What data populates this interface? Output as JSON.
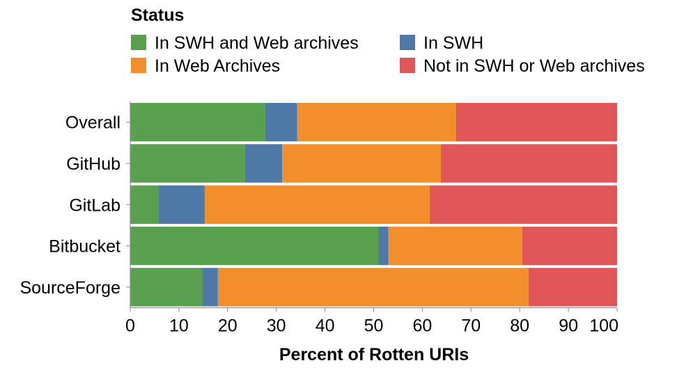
{
  "chart_data": {
    "type": "bar",
    "orientation": "horizontal",
    "stacked": true,
    "categories": [
      "Overall",
      "GitHub",
      "GitLab",
      "Bitbucket",
      "SourceForge"
    ],
    "series": [
      {
        "name": "In SWH and Web archives",
        "color": "#59a14f",
        "values": [
          27.7,
          23.6,
          5.8,
          51.0,
          14.8
        ]
      },
      {
        "name": "In SWH",
        "color": "#4e79a7",
        "values": [
          6.6,
          7.6,
          9.5,
          2.0,
          3.2
        ]
      },
      {
        "name": "In Web Archives",
        "color": "#f28e2b",
        "values": [
          32.6,
          32.6,
          46.2,
          27.5,
          63.8
        ]
      },
      {
        "name": "Not in SWH or Web archives",
        "color": "#e15759",
        "values": [
          33.1,
          36.2,
          38.5,
          19.5,
          18.2
        ]
      }
    ],
    "xlabel": "Percent of Rotten URIs",
    "ylabel": "",
    "xlim": [
      0,
      100
    ],
    "xticks": [
      0,
      10,
      20,
      30,
      40,
      50,
      60,
      70,
      80,
      90,
      100
    ],
    "grid": false,
    "legend": {
      "title": "Status",
      "placement": "top",
      "columns": 2,
      "order": [
        "In SWH and Web archives",
        "In SWH",
        "In Web Archives",
        "Not in SWH or Web archives"
      ]
    }
  }
}
